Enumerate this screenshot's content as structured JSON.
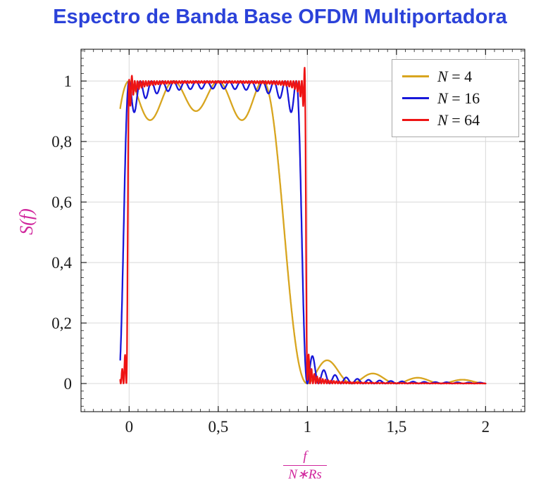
{
  "title": {
    "text": "Espectro de Banda Base OFDM Multiportadora",
    "color": "#2b42d9"
  },
  "chart_data": {
    "type": "line",
    "title": "Espectro de Banda Base OFDM Multiportadora",
    "ylabel": "S(f)",
    "xlabel_numerator": "f",
    "xlabel_denominator": "N∗Rs",
    "label_color": "#d0269c",
    "grid": true,
    "grid_color": "#d8d8d8",
    "axis_color": "#000000",
    "tick_color": "#222222",
    "xlim": [
      -0.27,
      2.22
    ],
    "ylim": [
      -0.093,
      1.105
    ],
    "xticks": [
      {
        "v": 0,
        "label": "0"
      },
      {
        "v": 0.5,
        "label": "0,5"
      },
      {
        "v": 1,
        "label": "1"
      },
      {
        "v": 1.5,
        "label": "1,5"
      },
      {
        "v": 2,
        "label": "2"
      }
    ],
    "yticks": [
      {
        "v": 0,
        "label": "0"
      },
      {
        "v": 0.2,
        "label": "0,2"
      },
      {
        "v": 0.4,
        "label": "0,4"
      },
      {
        "v": 0.6,
        "label": "0,6"
      },
      {
        "v": 0.8,
        "label": "0,8"
      },
      {
        "v": 1,
        "label": "1"
      }
    ],
    "x_minor_step": 0.05,
    "y_minor_step": 0.025,
    "legend_position": "top-right",
    "model": "S(u) = sum_{k=0}^{N-1} sinc^2(N*u - k), with u = f/(N*Rs); flat band ~1 over [0,1], sidelobes beyond",
    "sample_start": -0.05,
    "sample_end": 2.0,
    "sample_count": 2000,
    "line_width": 2.3,
    "series": [
      {
        "name": "N = 4",
        "N": 4,
        "color": "#d8a51f",
        "flat_band": [
          0,
          0.75
        ],
        "ripple_min": 0.87,
        "first_sidelobe": {
          "u": 1.12,
          "peak": 0.075
        }
      },
      {
        "name": "N = 16",
        "N": 16,
        "color": "#1717d9",
        "flat_band": [
          0,
          0.9375
        ],
        "ripple_min": 0.9,
        "first_sidelobe": {
          "u": 1.03,
          "peak": 0.083
        }
      },
      {
        "name": "N = 64",
        "N": 64,
        "color": "#ee1414",
        "flat_band": [
          0,
          0.984
        ],
        "ripple_min": 0.91,
        "first_sidelobe": {
          "u": 1.008,
          "peak": 0.08
        },
        "edge_spikes": [
          {
            "u": 0.988,
            "amp": 0.05,
            "width": 0.01
          },
          {
            "u": 0.012,
            "amp": 0.02,
            "width": 0.01
          }
        ]
      }
    ]
  }
}
